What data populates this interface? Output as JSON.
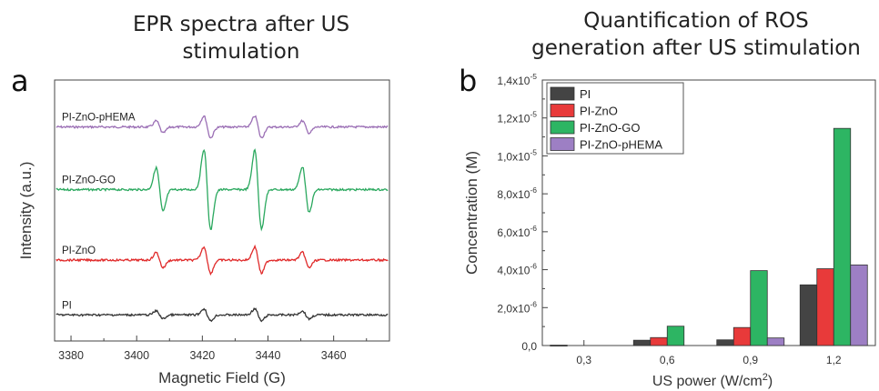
{
  "panels": {
    "a": {
      "letter": "a",
      "title_line1": "EPR spectra after US",
      "title_line2": "stimulation"
    },
    "b": {
      "letter": "b",
      "title_line1": "Quantification of ROS",
      "title_line2": "generation after US stimulation"
    }
  },
  "chart_data": [
    {
      "type": "line",
      "xlabel": "Magnetic Field (G)",
      "ylabel": "Intensity (a.u.)",
      "xlim": [
        3375,
        3477
      ],
      "xticks": [
        "3380",
        "3400",
        "3420",
        "3440",
        "3460"
      ],
      "xtick_values": [
        3380,
        3400,
        3420,
        3440,
        3460
      ],
      "grid": false,
      "line_centers": [
        3407,
        3421.5,
        3437,
        3451.5
      ],
      "series": [
        {
          "name": "PI-ZnO-pHEMA",
          "color": "#9b6fb5",
          "amplitudes": [
            0.28,
            0.5,
            0.5,
            0.28
          ],
          "baseline": 0.82
        },
        {
          "name": "PI-ZnO-GO",
          "color": "#2aa85e",
          "amplitudes": [
            1.0,
            1.85,
            1.8,
            1.05
          ],
          "baseline": 0.58
        },
        {
          "name": "PI-ZnO",
          "color": "#e02a2a",
          "amplitudes": [
            0.35,
            0.6,
            0.6,
            0.35
          ],
          "baseline": 0.31
        },
        {
          "name": "PI",
          "color": "#333333",
          "amplitudes": [
            0.18,
            0.28,
            0.28,
            0.18
          ],
          "baseline": 0.1
        }
      ]
    },
    {
      "type": "bar",
      "xlabel": "US power (W/cm",
      "xlabel_sup": "2",
      "xlabel_end": ")",
      "ylabel": "Concentration (M)",
      "categories": [
        "0,3",
        "0,6",
        "0,9",
        "1,2"
      ],
      "ylim": [
        0,
        1.4e-05
      ],
      "yticks": [
        {
          "value": 0,
          "mant": "0,0",
          "exp": ""
        },
        {
          "value": 2e-06,
          "mant": "2,0x10",
          "exp": "-6"
        },
        {
          "value": 4e-06,
          "mant": "4,0x10",
          "exp": "-6"
        },
        {
          "value": 6e-06,
          "mant": "6,0x10",
          "exp": "-6"
        },
        {
          "value": 8e-06,
          "mant": "8,0x10",
          "exp": "-6"
        },
        {
          "value": 1e-05,
          "mant": "1,0x10",
          "exp": "-5"
        },
        {
          "value": 1.2e-05,
          "mant": "1,2x10",
          "exp": "-5"
        },
        {
          "value": 1.4e-05,
          "mant": "1,4x10",
          "exp": "-5"
        }
      ],
      "legend_position": "top-left",
      "grid": false,
      "series": [
        {
          "name": "PI",
          "color": "#444444",
          "values": [
            2e-08,
            2.8e-07,
            3e-07,
            3.2e-06
          ]
        },
        {
          "name": "PI-ZnO",
          "color": "#e83a3a",
          "values": [
            0.0,
            4.2e-07,
            9.5e-07,
            4.05e-06
          ]
        },
        {
          "name": "PI-ZnO-GO",
          "color": "#2db563",
          "values": [
            0.0,
            1.02e-06,
            3.95e-06,
            1.145e-05
          ]
        },
        {
          "name": "PI-ZnO-pHEMA",
          "color": "#9d7fc4",
          "values": [
            0.0,
            0.0,
            4e-07,
            4.25e-06
          ]
        }
      ]
    }
  ]
}
